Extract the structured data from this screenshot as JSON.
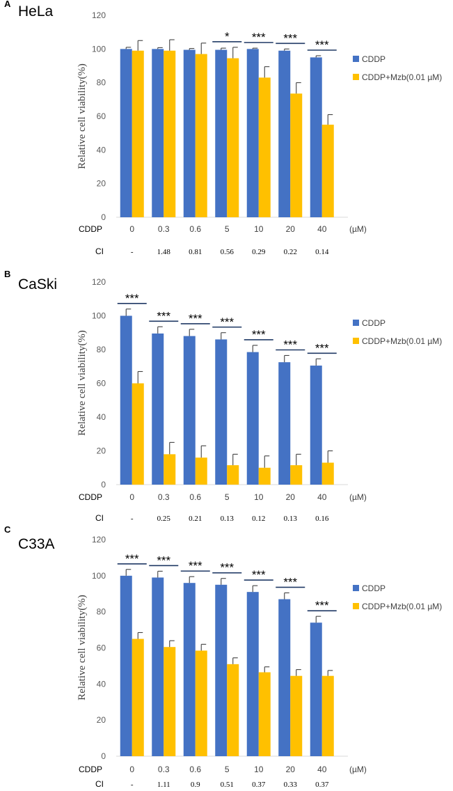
{
  "colors": {
    "cddp": "#4472C4",
    "combo": "#FFC000",
    "axis": "#D9D9D9",
    "sig_line": "#1F3864",
    "error": "#404040"
  },
  "x_axis_label": "CDDP",
  "x_unit": "(µM)",
  "ci_label": "CI",
  "chart_data": [
    {
      "type": "bar",
      "panel": "A",
      "title": "HeLa",
      "ylabel": "Relative cell viability(%)",
      "ylim": [
        0,
        120
      ],
      "yticks": [
        0,
        20,
        40,
        60,
        80,
        100,
        120
      ],
      "categories": [
        "0",
        "0.3",
        "0.6",
        "5",
        "10",
        "20",
        "40"
      ],
      "series": [
        {
          "name": "CDDP",
          "values": [
            100,
            100,
            99.5,
            99.5,
            100,
            99,
            95
          ],
          "errors": [
            1,
            0.8,
            0.8,
            1,
            0.5,
            1,
            1
          ]
        },
        {
          "name": "CDDP+Mzb(0.01 µM)",
          "values": [
            99,
            99,
            97,
            94.5,
            83,
            73.5,
            55
          ],
          "errors": [
            6,
            6.5,
            6.5,
            6.5,
            6.5,
            6.5,
            6
          ]
        }
      ],
      "significance": [
        "",
        "",
        "",
        "*",
        "***",
        "***",
        "***"
      ],
      "ci": [
        "-",
        "1.48",
        "0.81",
        "0.56",
        "0.29",
        "0.22",
        "0.14"
      ]
    },
    {
      "type": "bar",
      "panel": "B",
      "title": "CaSki",
      "ylabel": "Relative cell viability(%)",
      "ylim": [
        0,
        120
      ],
      "yticks": [
        0,
        20,
        40,
        60,
        80,
        100,
        120
      ],
      "categories": [
        "0",
        "0.3",
        "0.6",
        "5",
        "10",
        "20",
        "40"
      ],
      "series": [
        {
          "name": "CDDP",
          "values": [
            100,
            89.5,
            88,
            86,
            78.5,
            72.5,
            70.5
          ],
          "errors": [
            4,
            4,
            4,
            4,
            4,
            4,
            4
          ]
        },
        {
          "name": "CDDP+Mzb(0.01 µM)",
          "values": [
            60,
            18,
            16,
            11.5,
            10,
            11.5,
            13
          ],
          "errors": [
            7,
            7,
            7,
            6.5,
            7,
            6.5,
            7
          ]
        }
      ],
      "significance": [
        "***",
        "***",
        "***",
        "***",
        "***",
        "***",
        "***"
      ],
      "ci": [
        "-",
        "0.25",
        "0.21",
        "0.13",
        "0.12",
        "0.13",
        "0.16"
      ]
    },
    {
      "type": "bar",
      "panel": "C",
      "title": "C33A",
      "ylabel": "Relative cell viability(%)",
      "ylim": [
        0,
        120
      ],
      "yticks": [
        0,
        20,
        40,
        60,
        80,
        100,
        120
      ],
      "categories": [
        "0",
        "0.3",
        "0.6",
        "5",
        "10",
        "20",
        "40"
      ],
      "series": [
        {
          "name": "CDDP",
          "values": [
            100,
            99,
            96,
            95,
            91,
            87,
            74
          ],
          "errors": [
            3.5,
            3.5,
            3.5,
            3.5,
            3.5,
            3.5,
            3.5
          ]
        },
        {
          "name": "CDDP+Mzb(0.01 µM)",
          "values": [
            65,
            60.5,
            58.5,
            51,
            46.5,
            44.5,
            44.5
          ],
          "errors": [
            3.5,
            3.5,
            3.5,
            3.5,
            3,
            3.5,
            3
          ]
        }
      ],
      "significance": [
        "***",
        "***",
        "***",
        "***",
        "***",
        "***",
        "***"
      ],
      "ci": [
        "-",
        "1.11",
        "0.9",
        "0.51",
        "0.37",
        "0.33",
        "0.37"
      ]
    }
  ]
}
